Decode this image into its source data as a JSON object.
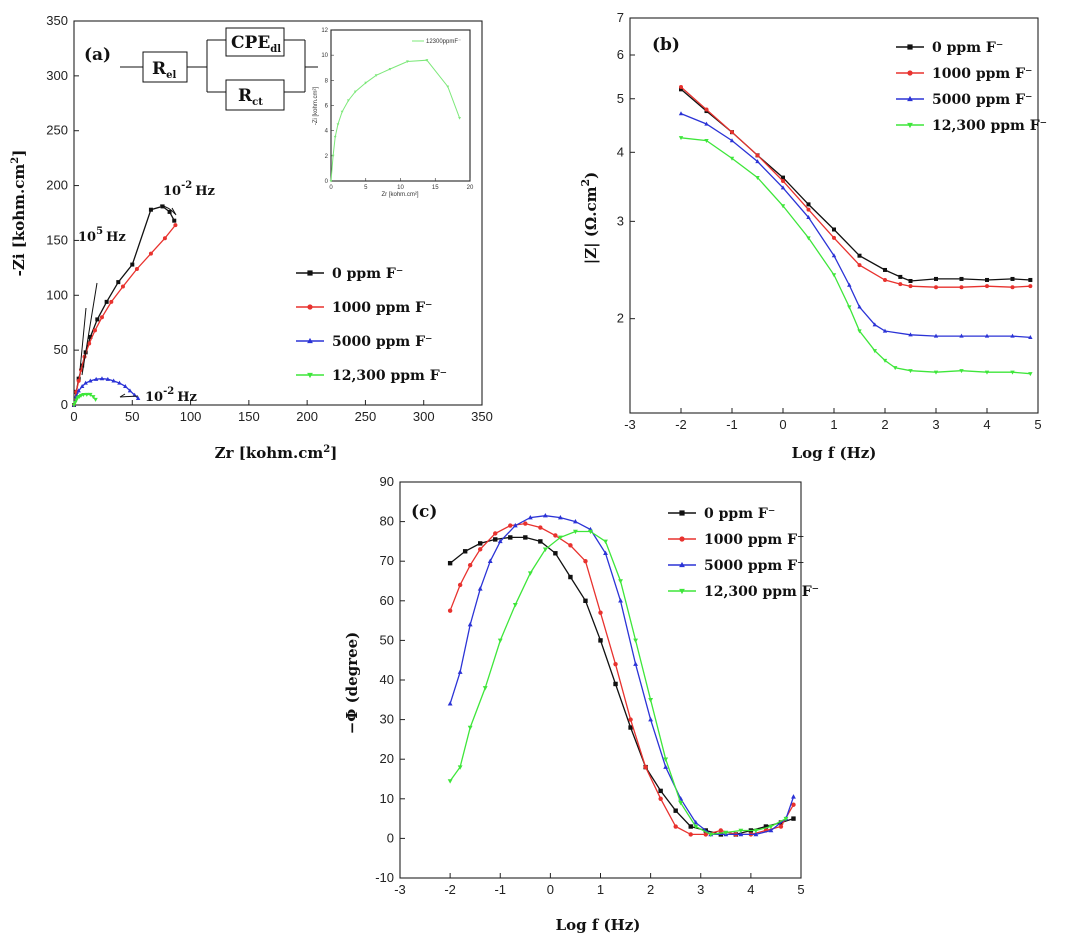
{
  "legend": [
    "0 ppm F⁻",
    "1000 ppm F⁻",
    "5000 ppm F⁻",
    "12,300 ppm F⁻"
  ],
  "colors": [
    "#111111",
    "#e8322e",
    "#2b33d6",
    "#3ee63a"
  ],
  "markers": [
    "square",
    "circle",
    "triangle-up",
    "triangle-down"
  ],
  "circuit": {
    "rel": "R",
    "rel_sub": "el",
    "cpe": "CPE",
    "cpe_sub": "dl",
    "rct": "R",
    "rct_sub": "ct"
  },
  "annotations": {
    "hz_low_a": "10",
    "hz_low_a_exp": "-2",
    "hz_high": "10",
    "hz_high_exp": "5",
    "hz_low_b": "10",
    "hz_low_b_exp": "-2",
    "hz_unit": "Hz"
  },
  "chart_data": [
    {
      "id": "a",
      "panel_label": "(a)",
      "type": "line",
      "xlabel": "Zr [kohm.cm",
      "xlabel_sup": "2",
      "xlabel_end": "]",
      "ylabel": "-Zi [kohm.cm",
      "ylabel_sup": "2",
      "ylabel_end": "]",
      "xlim": [
        0,
        350
      ],
      "ylim": [
        0,
        350
      ],
      "xticks": [
        0,
        50,
        100,
        150,
        200,
        250,
        300,
        350
      ],
      "yticks": [
        0,
        50,
        100,
        150,
        200,
        250,
        300,
        350
      ],
      "series": [
        {
          "name": "0 ppm F⁻",
          "x": [
            0,
            2,
            4,
            7,
            10,
            14,
            20,
            28,
            38,
            50,
            66,
            76,
            82,
            86
          ],
          "y": [
            0,
            12,
            24,
            36,
            48,
            62,
            78,
            94,
            112,
            128,
            178,
            181,
            176,
            168
          ]
        },
        {
          "name": "1000 ppm F⁻",
          "x": [
            0,
            2,
            4,
            6,
            9,
            13,
            18,
            24,
            32,
            42,
            54,
            66,
            78,
            87
          ],
          "y": [
            0,
            12,
            22,
            32,
            44,
            56,
            68,
            80,
            94,
            108,
            124,
            138,
            152,
            164
          ]
        },
        {
          "name": "5000 ppm F⁻",
          "x": [
            0,
            2,
            4,
            7,
            10,
            14,
            19,
            24,
            29,
            34,
            39,
            44,
            48,
            52,
            55
          ],
          "y": [
            0,
            8,
            13,
            17,
            20,
            22,
            23.5,
            24,
            23.5,
            22,
            20,
            17,
            13,
            9,
            6
          ]
        },
        {
          "name": "12,300 ppm F⁻",
          "x": [
            0,
            1,
            2,
            3,
            4.5,
            6,
            8,
            11,
            14,
            16.5,
            18.5
          ],
          "y": [
            0,
            2.2,
            4.5,
            6.5,
            7.7,
            8.7,
            9.5,
            9.6,
            9.6,
            7.5,
            5
          ]
        }
      ],
      "inset": {
        "legend": "12300ppmF⁻",
        "xlabel": "Zr [kohm.cm²]",
        "ylabel": "-Zi [kohm.cm²]",
        "xlim": [
          0,
          20
        ],
        "ylim": [
          0,
          12
        ],
        "xticks": [
          0,
          5,
          10,
          15,
          20
        ],
        "yticks": [
          0,
          2,
          4,
          6,
          8,
          10,
          12
        ],
        "x": [
          0,
          0.3,
          0.6,
          1,
          1.6,
          2.5,
          3.5,
          5,
          6.5,
          8.5,
          11,
          13.8,
          16.8,
          18.5
        ],
        "y": [
          0,
          2,
          3.5,
          4.5,
          5.5,
          6.4,
          7.1,
          7.8,
          8.4,
          8.9,
          9.5,
          9.6,
          7.5,
          5
        ]
      }
    },
    {
      "id": "b",
      "panel_label": "(b)",
      "type": "line",
      "xlabel": "Log f (Hz)",
      "ylabel": "|Z| (Ω.cm",
      "ylabel_sup": "2",
      "ylabel_end": ")",
      "xlim": [
        -3,
        5
      ],
      "ylim": [
        1.35,
        7
      ],
      "yscale": "log",
      "xticks": [
        -3,
        -2,
        -1,
        0,
        1,
        2,
        3,
        4,
        5
      ],
      "yticks": [
        2,
        3,
        4,
        5,
        6,
        7
      ],
      "series": [
        {
          "name": "0 ppm F⁻",
          "x": [
            -2,
            -1.5,
            -1,
            -0.5,
            0,
            0.5,
            1,
            1.5,
            2,
            2.3,
            2.5,
            3,
            3.5,
            4,
            4.5,
            4.85
          ],
          "y": [
            5.2,
            4.75,
            4.35,
            3.95,
            3.6,
            3.22,
            2.9,
            2.6,
            2.45,
            2.38,
            2.34,
            2.36,
            2.36,
            2.35,
            2.36,
            2.35
          ]
        },
        {
          "name": "1000 ppm F⁻",
          "x": [
            -2,
            -1.5,
            -1,
            -0.5,
            0,
            0.5,
            1,
            1.5,
            2,
            2.3,
            2.5,
            3,
            3.5,
            4,
            4.5,
            4.85
          ],
          "y": [
            5.25,
            4.78,
            4.35,
            3.95,
            3.55,
            3.15,
            2.8,
            2.5,
            2.35,
            2.31,
            2.29,
            2.28,
            2.28,
            2.29,
            2.28,
            2.29
          ]
        },
        {
          "name": "5000 ppm F⁻",
          "x": [
            -2,
            -1.5,
            -1,
            -0.5,
            0,
            0.5,
            1,
            1.3,
            1.5,
            1.8,
            2,
            2.5,
            3,
            3.5,
            4,
            4.5,
            4.85
          ],
          "y": [
            4.7,
            4.5,
            4.2,
            3.85,
            3.45,
            3.05,
            2.6,
            2.3,
            2.1,
            1.95,
            1.9,
            1.87,
            1.86,
            1.86,
            1.86,
            1.86,
            1.85
          ]
        },
        {
          "name": "12,300 ppm F⁻",
          "x": [
            -2,
            -1.5,
            -1,
            -0.5,
            0,
            0.5,
            1,
            1.3,
            1.5,
            1.8,
            2,
            2.2,
            2.5,
            3,
            3.5,
            4,
            4.5,
            4.85
          ],
          "y": [
            4.25,
            4.2,
            3.9,
            3.6,
            3.2,
            2.8,
            2.4,
            2.1,
            1.9,
            1.75,
            1.68,
            1.63,
            1.61,
            1.6,
            1.61,
            1.6,
            1.6,
            1.59
          ]
        }
      ]
    },
    {
      "id": "c",
      "panel_label": "(c)",
      "type": "line",
      "xlabel": "Log f (Hz)",
      "ylabel": "−Φ (degree)",
      "xlim": [
        -3,
        5
      ],
      "ylim": [
        -10,
        90
      ],
      "xticks": [
        -3,
        -2,
        -1,
        0,
        1,
        2,
        3,
        4,
        5
      ],
      "yticks": [
        -10,
        0,
        10,
        20,
        30,
        40,
        50,
        60,
        70,
        80,
        90
      ],
      "series": [
        {
          "name": "0 ppm F⁻",
          "x": [
            -2,
            -1.7,
            -1.4,
            -1.1,
            -0.8,
            -0.5,
            -0.2,
            0.1,
            0.4,
            0.7,
            1,
            1.3,
            1.6,
            1.9,
            2.2,
            2.5,
            2.8,
            3.1,
            3.4,
            3.7,
            4,
            4.3,
            4.6,
            4.85
          ],
          "y": [
            69.5,
            72.5,
            74.5,
            75.5,
            76,
            76,
            75,
            72,
            66,
            60,
            50,
            39,
            28,
            18,
            12,
            7,
            3,
            2,
            1,
            1,
            2,
            3,
            4,
            5
          ]
        },
        {
          "name": "1000 ppm F⁻",
          "x": [
            -2,
            -1.8,
            -1.6,
            -1.4,
            -1.1,
            -0.8,
            -0.5,
            -0.2,
            0.1,
            0.4,
            0.7,
            1,
            1.3,
            1.6,
            1.9,
            2.2,
            2.5,
            2.8,
            3.1,
            3.4,
            3.7,
            4,
            4.3,
            4.6,
            4.85
          ],
          "y": [
            57.5,
            64,
            69,
            73,
            77,
            79,
            79.5,
            78.5,
            76.5,
            74,
            70,
            57,
            44,
            30,
            18,
            10,
            3,
            1,
            1,
            2,
            1,
            1,
            2,
            3,
            8.5
          ]
        },
        {
          "name": "5000 ppm F⁻",
          "x": [
            -2,
            -1.8,
            -1.6,
            -1.4,
            -1.2,
            -1,
            -0.7,
            -0.4,
            -0.1,
            0.2,
            0.5,
            0.8,
            1.1,
            1.4,
            1.7,
            2,
            2.3,
            2.6,
            2.9,
            3.2,
            3.5,
            3.8,
            4.1,
            4.4,
            4.7,
            4.85
          ],
          "y": [
            34,
            42,
            54,
            63,
            70,
            75,
            79,
            81,
            81.5,
            81,
            80,
            78,
            72,
            60,
            44,
            30,
            18,
            10,
            4,
            1,
            1,
            1,
            1,
            2,
            5,
            10.5
          ]
        },
        {
          "name": "12,300 ppm F⁻",
          "x": [
            -2,
            -1.8,
            -1.6,
            -1.3,
            -1,
            -0.7,
            -0.4,
            -0.1,
            0.2,
            0.5,
            0.8,
            1.1,
            1.4,
            1.7,
            2,
            2.3,
            2.6,
            2.9,
            3.2,
            3.5,
            3.8,
            4.1,
            4.4,
            4.7
          ],
          "y": [
            14.5,
            18,
            28,
            38,
            50,
            59,
            67,
            73,
            76,
            77.5,
            77.5,
            75,
            65,
            50,
            35,
            20,
            9,
            3,
            1,
            1.5,
            2,
            2,
            3,
            5
          ]
        }
      ]
    }
  ]
}
